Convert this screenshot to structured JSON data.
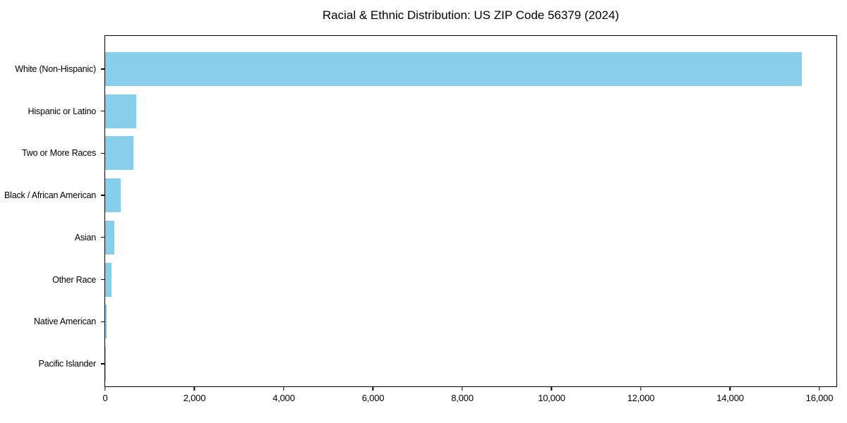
{
  "chart_data": {
    "type": "bar",
    "orientation": "horizontal",
    "title": "Racial & Ethnic Distribution: US ZIP Code 56379 (2024)",
    "xlabel": "",
    "ylabel": "",
    "categories": [
      "White (Non-Hispanic)",
      "Hispanic or Latino",
      "Two or More Races",
      "Black / African American",
      "Asian",
      "Other Race",
      "Native American",
      "Pacific Islander"
    ],
    "values": [
      15600,
      690,
      630,
      345,
      200,
      140,
      25,
      5
    ],
    "xlim": [
      0,
      16380
    ],
    "x_ticks": [
      {
        "value": 0,
        "label": "0"
      },
      {
        "value": 2000,
        "label": "2,000"
      },
      {
        "value": 4000,
        "label": "4,000"
      },
      {
        "value": 6000,
        "label": "6,000"
      },
      {
        "value": 8000,
        "label": "8,000"
      },
      {
        "value": 10000,
        "label": "10,000"
      },
      {
        "value": 12000,
        "label": "12,000"
      },
      {
        "value": 14000,
        "label": "14,000"
      },
      {
        "value": 16000,
        "label": "16,000"
      }
    ],
    "bar_color": "#87CEEB",
    "axis_color": "#000000",
    "background_color": "#ffffff",
    "grid": false,
    "legend_visible": false
  }
}
